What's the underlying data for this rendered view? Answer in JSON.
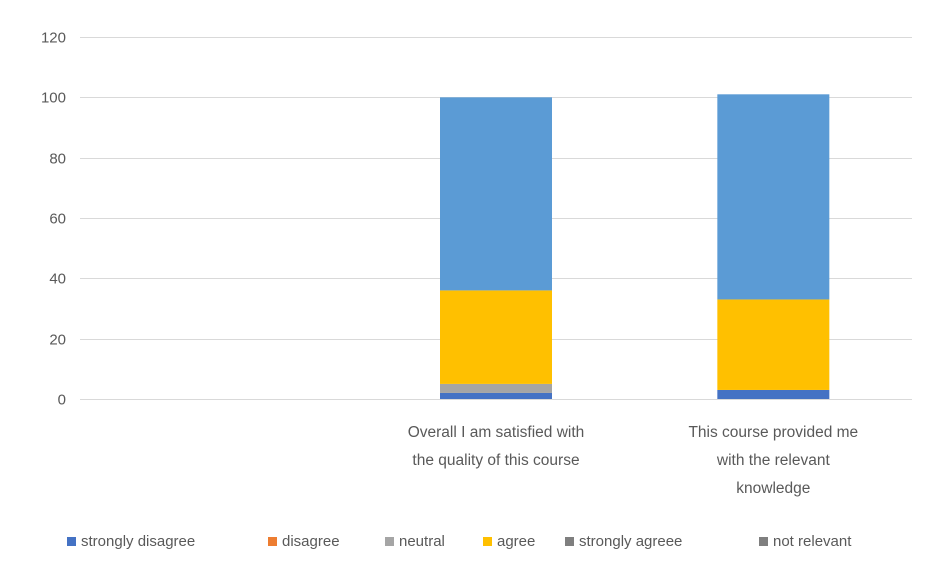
{
  "chart_data": {
    "type": "bar",
    "stacked": true,
    "categories": [
      "",
      "Overall I am satisfied with the quality of this course",
      "This course provided me with the relevant knowledge"
    ],
    "category_label_lines": [
      [],
      [
        "Overall I am satisfied with",
        "the quality of this course"
      ],
      [
        "This course provided me",
        "with the relevant",
        "knowledge"
      ]
    ],
    "series": [
      {
        "name": "strongly disagree",
        "color": "#4472C4",
        "values": [
          0,
          2,
          3
        ]
      },
      {
        "name": "disagree",
        "color": "#ED7D31",
        "values": [
          0,
          0,
          0
        ]
      },
      {
        "name": "neutral",
        "color": "#A5A5A5",
        "values": [
          0,
          3,
          0
        ]
      },
      {
        "name": "agree",
        "color": "#FFC000",
        "values": [
          0,
          31,
          30
        ]
      },
      {
        "name": "strongly agreee",
        "color": "#5B9BD5",
        "values": [
          0,
          64,
          68
        ]
      },
      {
        "name": "not relevant",
        "color": "#70AD47",
        "values": [
          0,
          0,
          0
        ]
      }
    ],
    "legend_marker_colors": [
      "#4472C4",
      "#ED7D31",
      "#A5A5A5",
      "#FFC000",
      "#7F7F7F",
      "#7F7F7F"
    ],
    "ylim": [
      0,
      120
    ],
    "yticks": [
      0,
      20,
      40,
      60,
      80,
      100,
      120
    ],
    "grid": true,
    "legend_position": "bottom",
    "title": "",
    "xlabel": "",
    "ylabel": ""
  }
}
